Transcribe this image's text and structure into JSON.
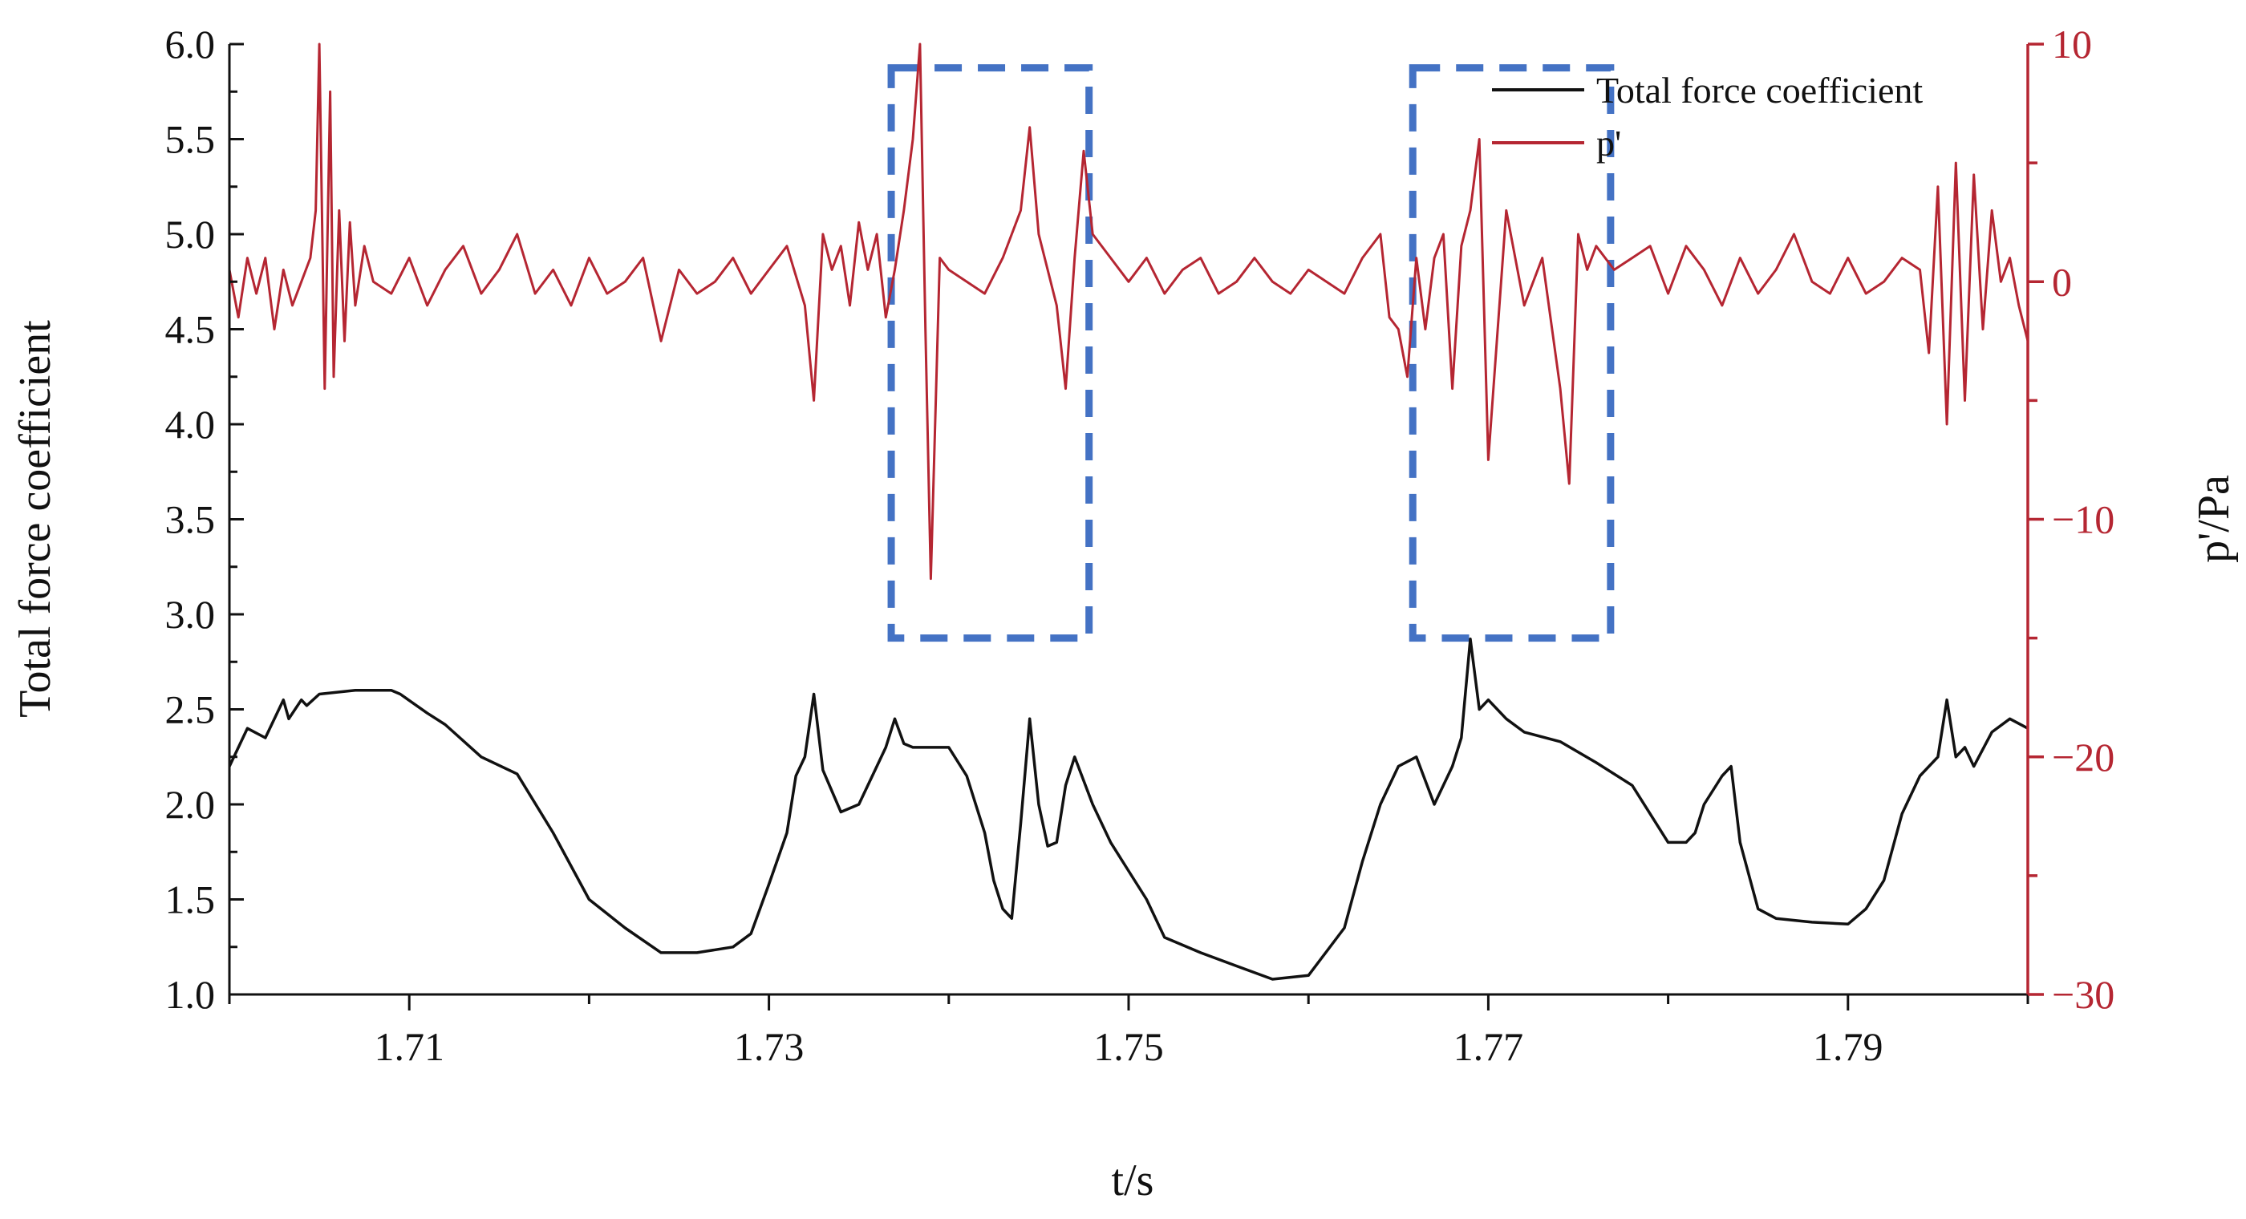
{
  "chart_data": {
    "type": "line",
    "title": "",
    "xlabel": "t/s",
    "ylabel_left": "Total force coefficient",
    "ylabel_right": "p'/Pa",
    "xlim": [
      1.7,
      1.8
    ],
    "ylim_left": [
      1.0,
      6.0
    ],
    "ylim_right": [
      -30,
      10
    ],
    "x_ticks": [
      1.71,
      1.73,
      1.75,
      1.77,
      1.79
    ],
    "x_tick_labels": [
      "1.71",
      "1.73",
      "1.75",
      "1.77",
      "1.79"
    ],
    "y_left_ticks": [
      1.0,
      1.5,
      2.0,
      2.5,
      3.0,
      3.5,
      4.0,
      4.5,
      5.0,
      5.5,
      6.0
    ],
    "y_left_tick_labels": [
      "1.0",
      "1.5",
      "2.0",
      "2.5",
      "3.0",
      "3.5",
      "4.0",
      "4.5",
      "5.0",
      "5.5",
      "6.0"
    ],
    "y_right_ticks": [
      -30,
      -20,
      -10,
      0,
      10
    ],
    "y_right_tick_labels": [
      "−30",
      "−20",
      "−10",
      "0",
      "10"
    ],
    "grid": false,
    "legend_position": "top-right",
    "colors": {
      "total_force": "#111111",
      "pressure": "#b52632",
      "highlight_box": "#4472c4",
      "axis_left": "#111111",
      "axis_right": "#b52632"
    },
    "series": [
      {
        "name": "Total force coefficient",
        "axis": "left",
        "x": [
          1.7,
          1.701,
          1.702,
          1.703,
          1.7033,
          1.704,
          1.7043,
          1.705,
          1.707,
          1.709,
          1.7095,
          1.711,
          1.712,
          1.714,
          1.716,
          1.718,
          1.72,
          1.722,
          1.724,
          1.726,
          1.728,
          1.729,
          1.73,
          1.731,
          1.7315,
          1.732,
          1.7325,
          1.733,
          1.734,
          1.735,
          1.736,
          1.7365,
          1.737,
          1.7375,
          1.738,
          1.74,
          1.741,
          1.742,
          1.7425,
          1.743,
          1.7435,
          1.744,
          1.7445,
          1.745,
          1.7455,
          1.746,
          1.7465,
          1.747,
          1.748,
          1.749,
          1.75,
          1.751,
          1.752,
          1.754,
          1.756,
          1.758,
          1.76,
          1.762,
          1.763,
          1.764,
          1.7645,
          1.765,
          1.766,
          1.767,
          1.768,
          1.7685,
          1.769,
          1.7695,
          1.77,
          1.771,
          1.772,
          1.774,
          1.776,
          1.778,
          1.78,
          1.781,
          1.7815,
          1.782,
          1.783,
          1.7835,
          1.784,
          1.785,
          1.786,
          1.788,
          1.79,
          1.791,
          1.792,
          1.793,
          1.794,
          1.795,
          1.7955,
          1.796,
          1.7965,
          1.797,
          1.798,
          1.799,
          1.8
        ],
        "y": [
          2.2,
          2.4,
          2.35,
          2.55,
          2.45,
          2.55,
          2.52,
          2.58,
          2.6,
          2.6,
          2.58,
          2.48,
          2.42,
          2.25,
          2.16,
          1.85,
          1.5,
          1.35,
          1.22,
          1.22,
          1.25,
          1.32,
          1.58,
          1.85,
          2.15,
          2.25,
          2.58,
          2.18,
          1.96,
          2.0,
          2.2,
          2.3,
          2.45,
          2.32,
          2.3,
          2.3,
          2.15,
          1.85,
          1.6,
          1.45,
          1.4,
          1.9,
          2.45,
          2.0,
          1.78,
          1.8,
          2.1,
          2.25,
          2.0,
          1.8,
          1.65,
          1.5,
          1.3,
          1.22,
          1.15,
          1.08,
          1.1,
          1.35,
          1.7,
          2.0,
          2.1,
          2.2,
          2.25,
          2.0,
          2.2,
          2.35,
          2.87,
          2.5,
          2.55,
          2.45,
          2.38,
          2.33,
          2.22,
          2.1,
          1.8,
          1.8,
          1.85,
          2.0,
          2.15,
          2.2,
          1.8,
          1.45,
          1.4,
          1.38,
          1.37,
          1.45,
          1.6,
          1.95,
          2.15,
          2.25,
          2.55,
          2.25,
          2.3,
          2.2,
          2.38,
          2.45,
          2.4
        ]
      },
      {
        "name": "p'",
        "axis": "right",
        "x": [
          1.7,
          1.7005,
          1.701,
          1.7015,
          1.702,
          1.7025,
          1.703,
          1.7035,
          1.704,
          1.7045,
          1.7048,
          1.705,
          1.7053,
          1.7056,
          1.7058,
          1.7061,
          1.7064,
          1.7067,
          1.707,
          1.7075,
          1.708,
          1.709,
          1.71,
          1.711,
          1.712,
          1.713,
          1.714,
          1.715,
          1.716,
          1.717,
          1.718,
          1.719,
          1.72,
          1.721,
          1.722,
          1.723,
          1.724,
          1.725,
          1.726,
          1.727,
          1.728,
          1.729,
          1.73,
          1.731,
          1.732,
          1.7325,
          1.733,
          1.7335,
          1.734,
          1.7345,
          1.735,
          1.7355,
          1.736,
          1.7365,
          1.737,
          1.7375,
          1.738,
          1.7384,
          1.7387,
          1.739,
          1.7395,
          1.74,
          1.741,
          1.742,
          1.743,
          1.744,
          1.7445,
          1.745,
          1.746,
          1.7465,
          1.747,
          1.7475,
          1.748,
          1.749,
          1.75,
          1.751,
          1.752,
          1.753,
          1.754,
          1.755,
          1.756,
          1.757,
          1.758,
          1.759,
          1.76,
          1.761,
          1.762,
          1.763,
          1.764,
          1.7645,
          1.765,
          1.7655,
          1.766,
          1.7665,
          1.767,
          1.7675,
          1.768,
          1.7685,
          1.769,
          1.7695,
          1.77,
          1.771,
          1.772,
          1.773,
          1.774,
          1.7745,
          1.775,
          1.7755,
          1.776,
          1.777,
          1.778,
          1.779,
          1.78,
          1.781,
          1.782,
          1.783,
          1.784,
          1.785,
          1.786,
          1.787,
          1.788,
          1.789,
          1.79,
          1.791,
          1.792,
          1.793,
          1.794,
          1.7945,
          1.795,
          1.7955,
          1.796,
          1.7965,
          1.797,
          1.7975,
          1.798,
          1.7985,
          1.799,
          1.7995,
          1.8
        ],
        "y": [
          0.5,
          -1.5,
          1.0,
          -0.5,
          1.0,
          -2.0,
          0.5,
          -1.0,
          0.0,
          1.0,
          3.0,
          10.0,
          -4.5,
          8.0,
          -4.0,
          3.0,
          -2.5,
          2.5,
          -1.0,
          1.5,
          0.0,
          -0.5,
          1.0,
          -1.0,
          0.5,
          1.5,
          -0.5,
          0.5,
          2.0,
          -0.5,
          0.5,
          -1.0,
          1.0,
          -0.5,
          0.0,
          1.0,
          -2.5,
          0.5,
          -0.5,
          0.0,
          1.0,
          -0.5,
          0.5,
          1.5,
          -1.0,
          -5.0,
          2.0,
          0.5,
          1.5,
          -1.0,
          2.5,
          0.5,
          2.0,
          -1.5,
          0.5,
          3.0,
          6.0,
          10.0,
          -2.0,
          -12.5,
          1.0,
          0.5,
          0.0,
          -0.5,
          1.0,
          3.0,
          6.5,
          2.0,
          -1.0,
          -4.5,
          1.0,
          5.5,
          2.0,
          1.0,
          0.0,
          1.0,
          -0.5,
          0.5,
          1.0,
          -0.5,
          0.0,
          1.0,
          0.0,
          -0.5,
          0.5,
          0.0,
          -0.5,
          1.0,
          2.0,
          -1.5,
          -2.0,
          -4.0,
          1.0,
          -2.0,
          1.0,
          2.0,
          -4.5,
          1.5,
          3.0,
          6.0,
          -7.5,
          3.0,
          -1.0,
          1.0,
          -4.5,
          -8.5,
          2.0,
          0.5,
          1.5,
          0.5,
          1.0,
          1.5,
          -0.5,
          1.5,
          0.5,
          -1.0,
          1.0,
          -0.5,
          0.5,
          2.0,
          0.0,
          -0.5,
          1.0,
          -0.5,
          0.0,
          1.0,
          0.5,
          -3.0,
          4.0,
          -6.0,
          5.0,
          -5.0,
          4.5,
          -2.0,
          3.0,
          0.0,
          1.0,
          -1.0,
          -2.5
        ]
      }
    ],
    "legend": [
      {
        "label": "Total force coefficient",
        "color": "#111111"
      },
      {
        "label": "p'",
        "color": "#b52632"
      }
    ],
    "annotations": [
      {
        "type": "dashed-rectangle",
        "x_range": [
          1.7368,
          1.7478
        ],
        "y_range_right": [
          -15,
          9
        ]
      },
      {
        "type": "dashed-rectangle",
        "x_range": [
          1.7658,
          1.7768
        ],
        "y_range_right": [
          -15,
          9
        ]
      }
    ]
  }
}
